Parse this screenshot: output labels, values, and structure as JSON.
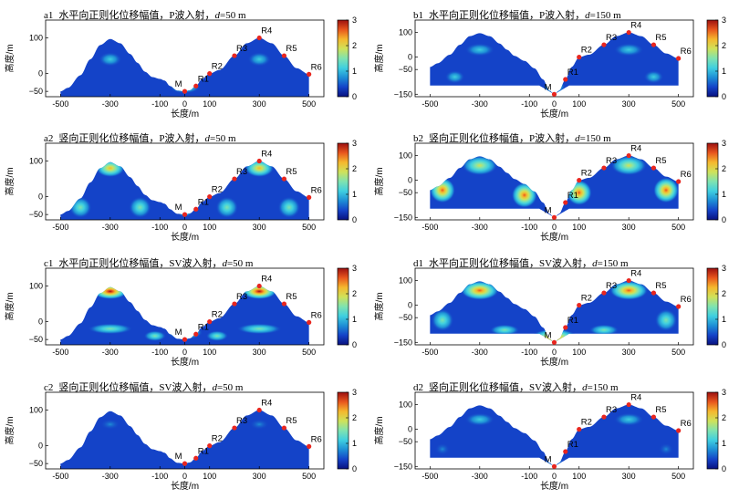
{
  "colors": {
    "marker": "#e8261f",
    "colormap": [
      "#09117e",
      "#1443c8",
      "#1e8ed6",
      "#3fcfe0",
      "#7fe3b0",
      "#cfe25a",
      "#f5b82e",
      "#e8561d",
      "#9c1010"
    ]
  },
  "common": {
    "xlabel": "长度/m",
    "ylabel": "高度/m",
    "x_ticks": [
      "-500",
      "-300",
      "-100",
      "0",
      "100",
      "300",
      "500"
    ],
    "colorbar_ticks": [
      "0",
      "1",
      "2",
      "3"
    ]
  },
  "chart_data": [
    {
      "id": "a1",
      "type": "heatmap",
      "title": {
        "tag": "a1",
        "pre": "水平向正则化位移幅值，P波入射，",
        "var": "d",
        "post": "=50 m"
      },
      "depth": 50,
      "y_ticks": [
        "100",
        "0",
        "−50"
      ],
      "ylim": [
        -65,
        150
      ],
      "xlim": [
        -560,
        560
      ],
      "clim": [
        0,
        3
      ],
      "receivers": [
        "M",
        "R1",
        "R2",
        "R3",
        "R4",
        "R5",
        "R6"
      ]
    },
    {
      "id": "b1",
      "type": "heatmap",
      "title": {
        "tag": "b1",
        "pre": "水平向正则化位移幅值，P波入射，",
        "var": "d",
        "post": "=150 m"
      },
      "depth": 150,
      "y_ticks": [
        "100",
        "0",
        "−50",
        "−150"
      ],
      "ylim": [
        -160,
        150
      ],
      "xlim": [
        -560,
        560
      ],
      "clim": [
        0,
        3
      ],
      "receivers": [
        "M",
        "R1",
        "R2",
        "R3",
        "R4",
        "R5",
        "R6"
      ]
    },
    {
      "id": "a2",
      "type": "heatmap",
      "title": {
        "tag": "a2",
        "pre": "竖向正则化位移幅值，P波入射，",
        "var": "d",
        "post": "=50 m"
      },
      "depth": 50,
      "y_ticks": [
        "100",
        "0",
        "−50"
      ],
      "ylim": [
        -65,
        150
      ],
      "xlim": [
        -560,
        560
      ],
      "clim": [
        0,
        3
      ],
      "receivers": [
        "M",
        "R1",
        "R2",
        "R3",
        "R4",
        "R5",
        "R6"
      ]
    },
    {
      "id": "b2",
      "type": "heatmap",
      "title": {
        "tag": "b2",
        "pre": "竖向正则化位移幅值，P波入射，",
        "var": "d",
        "post": "=150 m"
      },
      "depth": 150,
      "y_ticks": [
        "100",
        "0",
        "−50",
        "−150"
      ],
      "ylim": [
        -160,
        150
      ],
      "xlim": [
        -560,
        560
      ],
      "clim": [
        0,
        3
      ],
      "receivers": [
        "M",
        "R1",
        "R2",
        "R3",
        "R4",
        "R5",
        "R6"
      ]
    },
    {
      "id": "c1",
      "type": "heatmap",
      "title": {
        "tag": "c1",
        "pre": "水平向正则化位移幅值，SV波入射，",
        "var": "d",
        "post": "=50 m"
      },
      "depth": 50,
      "y_ticks": [
        "100",
        "0",
        "−50"
      ],
      "ylim": [
        -65,
        150
      ],
      "xlim": [
        -560,
        560
      ],
      "clim": [
        0,
        3
      ],
      "receivers": [
        "M",
        "R1",
        "R2",
        "R3",
        "R4",
        "R5",
        "R6"
      ]
    },
    {
      "id": "d1",
      "type": "heatmap",
      "title": {
        "tag": "d1",
        "pre": "水平向正则化位移幅值，SV波入射，",
        "var": "d",
        "post": "=150 m"
      },
      "depth": 150,
      "y_ticks": [
        "100",
        "0",
        "−50",
        "−150"
      ],
      "ylim": [
        -160,
        150
      ],
      "xlim": [
        -560,
        560
      ],
      "clim": [
        0,
        3
      ],
      "receivers": [
        "M",
        "R1",
        "R2",
        "R3",
        "R4",
        "R5",
        "R6"
      ]
    },
    {
      "id": "c2",
      "type": "heatmap",
      "title": {
        "tag": "c2",
        "pre": "竖向正则化位移幅值，SV波入射，",
        "var": "d",
        "post": "=50 m"
      },
      "depth": 50,
      "y_ticks": [
        "100",
        "0",
        "−50"
      ],
      "ylim": [
        -65,
        150
      ],
      "xlim": [
        -560,
        560
      ],
      "clim": [
        0,
        3
      ],
      "receivers": [
        "M",
        "R1",
        "R2",
        "R3",
        "R4",
        "R5",
        "R6"
      ]
    },
    {
      "id": "d2",
      "type": "heatmap",
      "title": {
        "tag": "d2",
        "pre": "竖向正则化位移幅值，SV波入射，",
        "var": "d",
        "post": "=150 m"
      },
      "depth": 150,
      "y_ticks": [
        "100",
        "0",
        "−50",
        "−150"
      ],
      "ylim": [
        -160,
        150
      ],
      "xlim": [
        -560,
        560
      ],
      "clim": [
        0,
        3
      ],
      "receivers": [
        "M",
        "R1",
        "R2",
        "R3",
        "R4",
        "R5",
        "R6"
      ]
    }
  ]
}
